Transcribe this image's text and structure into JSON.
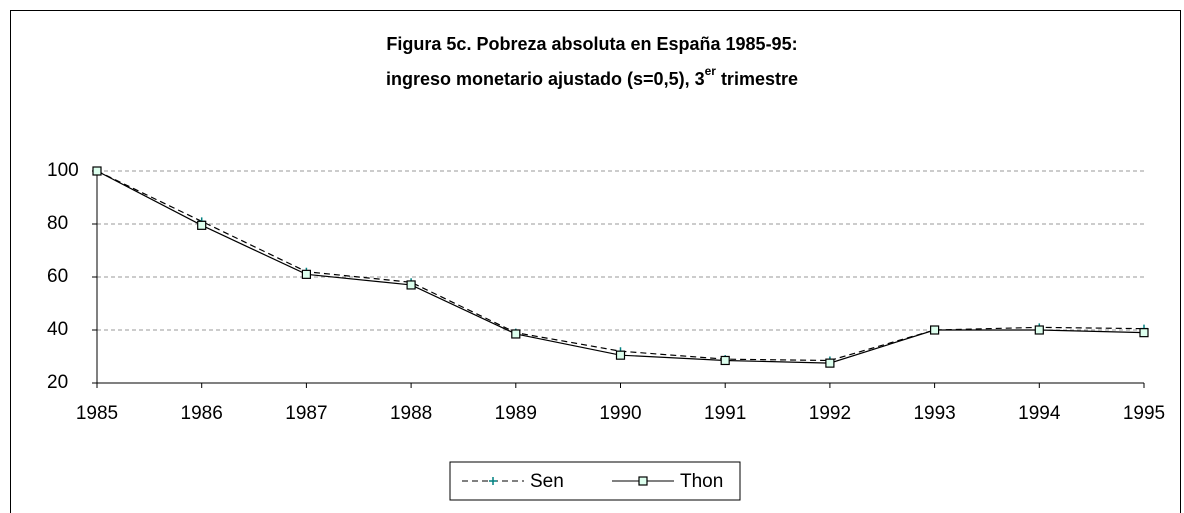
{
  "chart_data": {
    "type": "line",
    "title": [
      "Figura 5c. Pobreza absoluta en España 1985-95:",
      "ingreso monetario ajustado (s=0,5), 3",
      "er",
      " trimestre"
    ],
    "x": [
      1985,
      1986,
      1987,
      1988,
      1989,
      1990,
      1991,
      1992,
      1993,
      1994,
      1995
    ],
    "xlim": [
      1985,
      1995
    ],
    "xticks": [
      1985,
      1986,
      1987,
      1988,
      1989,
      1990,
      1991,
      1992,
      1993,
      1994,
      1995
    ],
    "ylim": [
      20,
      100
    ],
    "yticks": [
      20,
      40,
      60,
      80,
      100
    ],
    "grid": true,
    "legend": "bottom",
    "series": [
      {
        "name": "Sen",
        "color": "#008080",
        "line_color": "#000000",
        "dash": true,
        "marker": "plus",
        "values": [
          100,
          81,
          62,
          58,
          39,
          32,
          29,
          28.5,
          40,
          41,
          40.5
        ]
      },
      {
        "name": "Thon",
        "color": "#000000",
        "line_color": "#000000",
        "dash": false,
        "marker": "square",
        "values": [
          100,
          79.5,
          61,
          57,
          38.5,
          30.5,
          28.5,
          27.5,
          40,
          40,
          39
        ]
      }
    ]
  }
}
